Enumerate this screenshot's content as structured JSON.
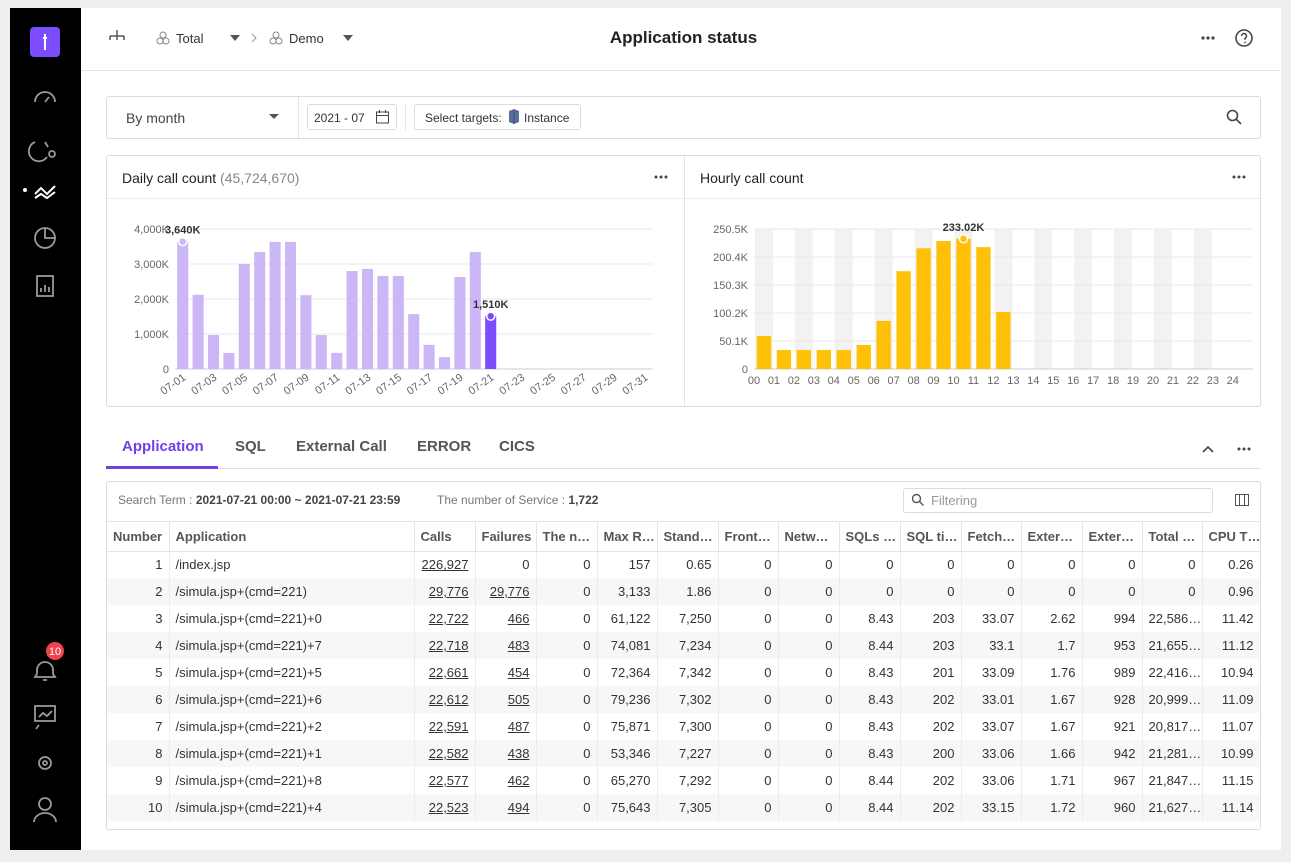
{
  "sidebar": {
    "badge": "10"
  },
  "header": {
    "breadcrumb": [
      "Total",
      "Demo"
    ],
    "title": "Application status"
  },
  "filters": {
    "period": "By month",
    "date": "2021 - 07",
    "targets_label": "Select targets:",
    "targets_value": "Instance"
  },
  "chart_data": [
    {
      "type": "bar",
      "title": "Daily call count",
      "subtitle": "(45,724,670)",
      "categories": [
        "07-01",
        null,
        "07-03",
        null,
        "07-05",
        null,
        "07-07",
        null,
        "07-09",
        null,
        "07-11",
        null,
        "07-13",
        null,
        "07-15",
        null,
        "07-17",
        null,
        "07-19",
        null,
        "07-21",
        null,
        "07-23",
        null,
        "07-25",
        null,
        "07-27",
        null,
        "07-29",
        null,
        "07-31"
      ],
      "values": [
        3640,
        2120,
        970,
        460,
        3000,
        3340,
        3630,
        3630,
        2110,
        970,
        460,
        2800,
        2860,
        2660,
        2660,
        1570,
        690,
        340,
        2630,
        3340,
        1510,
        null,
        null,
        null,
        null,
        null,
        null,
        null,
        null,
        null,
        null
      ],
      "value_labels": [
        "3,640K",
        null,
        null,
        null,
        null,
        null,
        null,
        null,
        null,
        null,
        null,
        null,
        null,
        null,
        null,
        null,
        null,
        null,
        null,
        null,
        "1,510K",
        null,
        null,
        null,
        null,
        null,
        null,
        null,
        null,
        null,
        null
      ],
      "colors": [
        "#cbb6f6",
        "#cbb6f6",
        "#cbb6f6",
        "#cbb6f6",
        "#cbb6f6",
        "#cbb6f6",
        "#cbb6f6",
        "#cbb6f6",
        "#cbb6f6",
        "#cbb6f6",
        "#cbb6f6",
        "#cbb6f6",
        "#cbb6f6",
        "#cbb6f6",
        "#cbb6f6",
        "#cbb6f6",
        "#cbb6f6",
        "#cbb6f6",
        "#cbb6f6",
        "#cbb6f6",
        "#7c4dff",
        null,
        null,
        null,
        null,
        null,
        null,
        null,
        null,
        null,
        null
      ],
      "ylim": [
        0,
        4000
      ],
      "yticks": [
        0,
        {
          "value": 1000,
          "label": "1,000K"
        },
        {
          "value": 2000,
          "label": "2,000K"
        },
        {
          "value": 3000,
          "label": "3,000K"
        },
        {
          "value": 4000,
          "label": "4,000K"
        }
      ],
      "grid": true
    },
    {
      "type": "bar",
      "title": "Hourly call count",
      "categories": [
        "00",
        "01",
        "02",
        "03",
        "04",
        "05",
        "06",
        "07",
        "08",
        "09",
        "10",
        "11",
        "12",
        "13",
        "14",
        "15",
        "16",
        "17",
        "18",
        "19",
        "20",
        "21",
        "22",
        "23",
        "24"
      ],
      "values": [
        59,
        34,
        34,
        34,
        34,
        43,
        86,
        175,
        216,
        229,
        233.02,
        218,
        102,
        null,
        null,
        null,
        null,
        null,
        null,
        null,
        null,
        null,
        null,
        null,
        null
      ],
      "value_labels": [
        null,
        null,
        null,
        null,
        null,
        null,
        null,
        null,
        null,
        null,
        "233.02K",
        null,
        null,
        null,
        null,
        null,
        null,
        null,
        null,
        null,
        null,
        null,
        null,
        null,
        null
      ],
      "color": "#ffc107",
      "ylim": [
        0,
        250.5
      ],
      "yticks": [
        0,
        {
          "value": 50.1,
          "label": "50.1K"
        },
        {
          "value": 100.2,
          "label": "100.2K"
        },
        {
          "value": 150.3,
          "label": "150.3K"
        },
        {
          "value": 200.4,
          "label": "200.4K"
        },
        {
          "value": 250.5,
          "label": "250.5K"
        }
      ],
      "grid": true
    }
  ],
  "tabs": [
    "Application",
    "SQL",
    "External Call",
    "ERROR",
    "CICS"
  ],
  "table": {
    "search_label": "Search Term : ",
    "search_value": "2021-07-21 00:00 ~ 2021-07-21 23:59",
    "service_label": "The number of Service : ",
    "service_value": "1,722",
    "filter_placeholder": "Filtering",
    "columns": [
      "Number",
      "Application",
      "Calls",
      "Failures",
      "The n…",
      "Max R…",
      "Stand…",
      "Front…",
      "Netw…",
      "SQLs …",
      "SQL ti…",
      "Fetch…",
      "Exter…",
      "Exter…",
      "Total …",
      "CPU T…"
    ],
    "rows": [
      [
        "1",
        "/index.jsp",
        "226,927",
        "0",
        "0",
        "157",
        "0.65",
        "0",
        "0",
        "0",
        "0",
        "0",
        "0",
        "0",
        "0",
        "0.26"
      ],
      [
        "2",
        "/simula.jsp+(cmd=221)",
        "29,776",
        "29,776",
        "0",
        "3,133",
        "1.86",
        "0",
        "0",
        "0",
        "0",
        "0",
        "0",
        "0",
        "0",
        "0.96"
      ],
      [
        "3",
        "/simula.jsp+(cmd=221)+0",
        "22,722",
        "466",
        "0",
        "61,122",
        "7,250",
        "0",
        "0",
        "8.43",
        "203",
        "33.07",
        "2.62",
        "994",
        "22,586…",
        "11.42"
      ],
      [
        "4",
        "/simula.jsp+(cmd=221)+7",
        "22,718",
        "483",
        "0",
        "74,081",
        "7,234",
        "0",
        "0",
        "8.44",
        "203",
        "33.1",
        "1.7",
        "953",
        "21,655…",
        "11.12"
      ],
      [
        "5",
        "/simula.jsp+(cmd=221)+5",
        "22,661",
        "454",
        "0",
        "72,364",
        "7,342",
        "0",
        "0",
        "8.43",
        "201",
        "33.09",
        "1.76",
        "989",
        "22,416…",
        "10.94"
      ],
      [
        "6",
        "/simula.jsp+(cmd=221)+6",
        "22,612",
        "505",
        "0",
        "79,236",
        "7,302",
        "0",
        "0",
        "8.43",
        "202",
        "33.01",
        "1.67",
        "928",
        "20,999…",
        "11.09"
      ],
      [
        "7",
        "/simula.jsp+(cmd=221)+2",
        "22,591",
        "487",
        "0",
        "75,871",
        "7,300",
        "0",
        "0",
        "8.43",
        "202",
        "33.07",
        "1.67",
        "921",
        "20,817…",
        "11.07"
      ],
      [
        "8",
        "/simula.jsp+(cmd=221)+1",
        "22,582",
        "438",
        "0",
        "53,346",
        "7,227",
        "0",
        "0",
        "8.43",
        "200",
        "33.06",
        "1.66",
        "942",
        "21,281…",
        "10.99"
      ],
      [
        "9",
        "/simula.jsp+(cmd=221)+8",
        "22,577",
        "462",
        "0",
        "65,270",
        "7,292",
        "0",
        "0",
        "8.44",
        "202",
        "33.06",
        "1.71",
        "967",
        "21,847…",
        "11.15"
      ],
      [
        "10",
        "/simula.jsp+(cmd=221)+4",
        "22,523",
        "494",
        "0",
        "75,643",
        "7,305",
        "0",
        "0",
        "8.44",
        "202",
        "33.15",
        "1.72",
        "960",
        "21,627…",
        "11.14"
      ]
    ]
  }
}
